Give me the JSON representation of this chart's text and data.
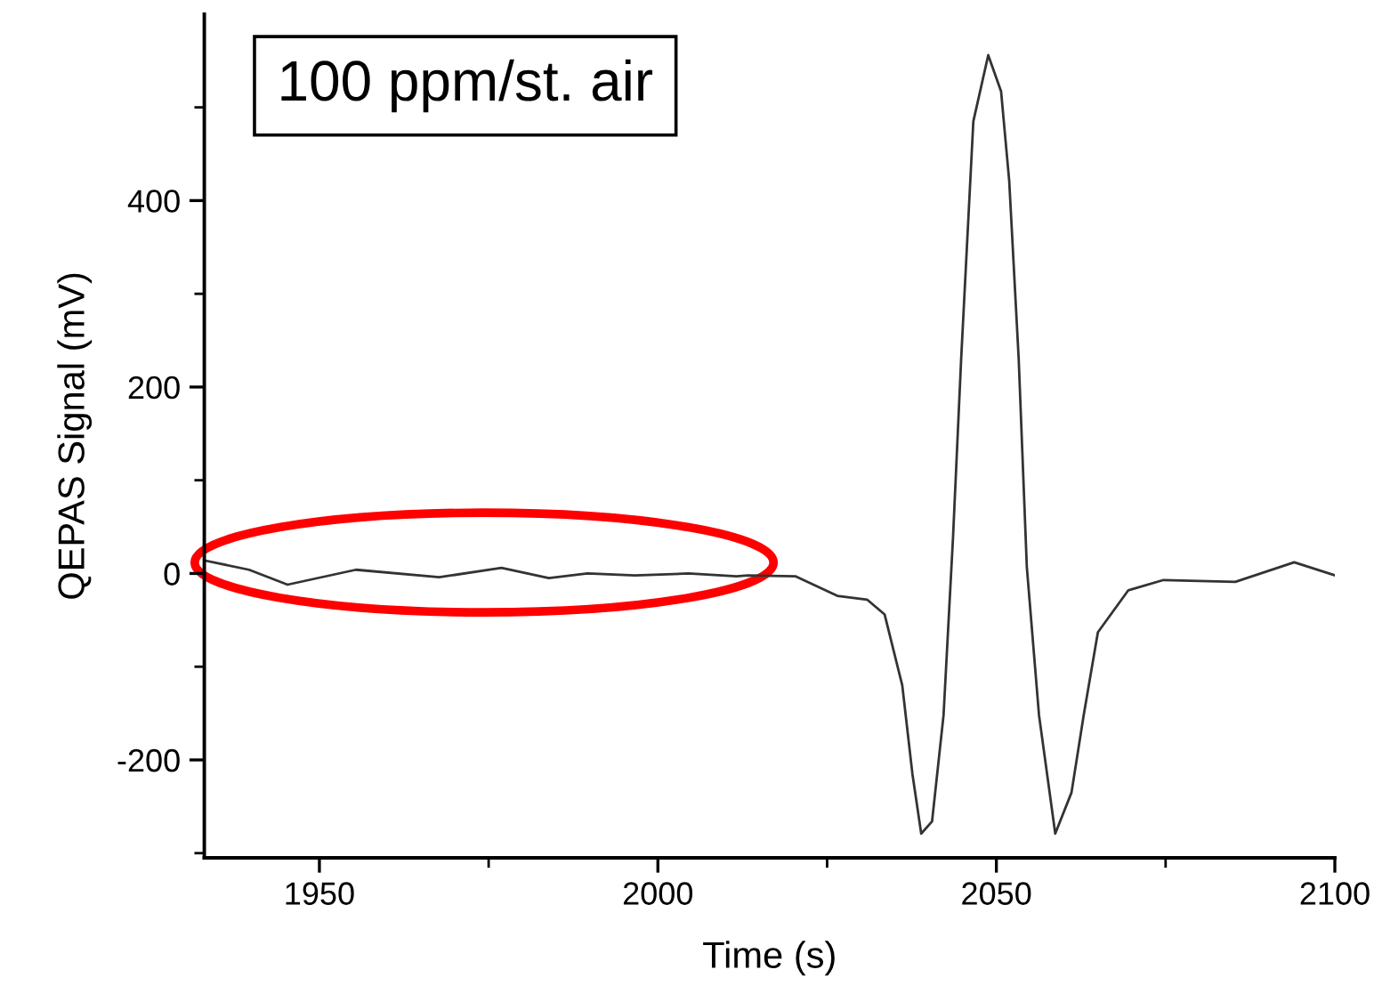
{
  "chart_data": {
    "type": "line",
    "xlabel": "Time (s)",
    "ylabel": "QEPAS Signal (mV)",
    "annotations": [
      "100 ppm/st. air"
    ],
    "x": [
      1933,
      1939.6,
      1945.3,
      1955.4,
      1967.7,
      1976.9,
      1983.9,
      1989.6,
      1996.6,
      2004.5,
      2011.6,
      2013.3,
      2020.3,
      2026.5,
      2030.9,
      2033.5,
      2036.1,
      2037.6,
      2038.9,
      2040.5,
      2042.2,
      2043.6,
      2044.8,
      2046.6,
      2048.8,
      2050.7,
      2051.9,
      2053.3,
      2054.5,
      2056.3,
      2058.7,
      2061.1,
      2062.9,
      2065.0,
      2069.5,
      2074.7,
      2085.3,
      2094.0,
      2100
    ],
    "series": [
      {
        "color": "#333333",
        "values": [
          14,
          4,
          -12,
          4,
          -4,
          6,
          -5,
          0,
          -2,
          0,
          -3,
          -2,
          -3,
          -24,
          -28,
          -44,
          -120,
          -215,
          -279,
          -266,
          -152,
          39,
          230,
          485,
          556,
          517,
          421,
          230,
          7,
          -152,
          -279,
          -235,
          -152,
          -63,
          -18,
          -7,
          -9,
          12,
          -2
        ]
      }
    ],
    "xlim": [
      1933,
      2100
    ],
    "ylim": [
      -305,
      600
    ],
    "xticks": [
      1950,
      {
        "value": 1975,
        "label": null
      },
      2000,
      {
        "value": 2025,
        "label": null
      },
      2050,
      {
        "value": 2075,
        "label": null
      },
      2100
    ],
    "yticks": [
      {
        "value": -300,
        "label": null
      },
      -200,
      {
        "value": -100,
        "label": null
      },
      0,
      {
        "value": 100,
        "label": null
      },
      200,
      {
        "value": 300,
        "label": null
      },
      400,
      {
        "value": 500,
        "label": null
      }
    ],
    "grid": false,
    "legend": false,
    "marker": "none",
    "line_style": "solid"
  }
}
